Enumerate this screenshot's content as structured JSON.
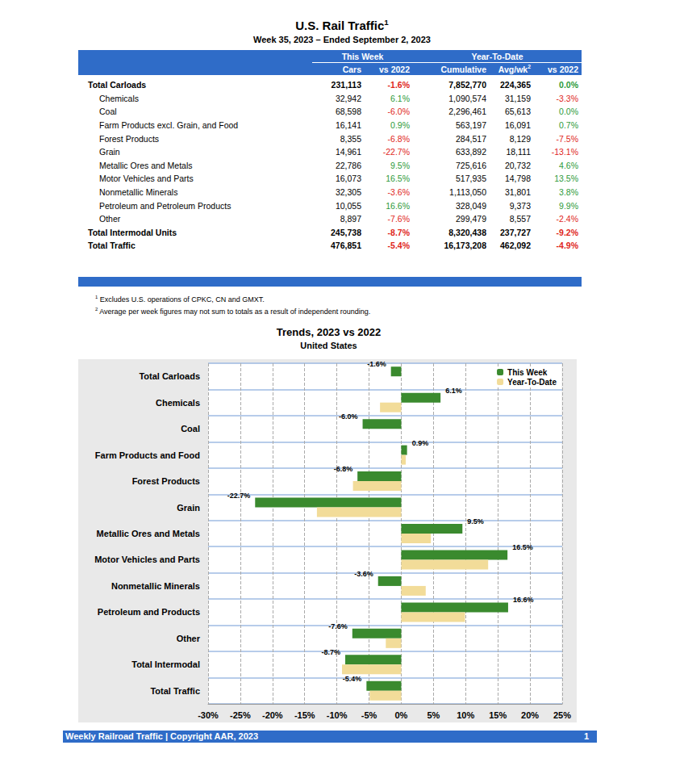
{
  "header": {
    "title": "U.S. Rail Traffic",
    "title_note": "1",
    "subtitle": "Week 35, 2023 – Ended September 2, 2023"
  },
  "table": {
    "header_groups": [
      {
        "label": "This Week",
        "columns": [
          {
            "text": "Cars"
          },
          {
            "text": "vs 2022"
          }
        ]
      },
      {
        "label": "Year-To-Date",
        "columns": [
          {
            "text": "Cumulative"
          },
          {
            "text": "Avg/wk",
            "note": "2"
          },
          {
            "text": "vs 2022"
          }
        ]
      }
    ],
    "rows": [
      {
        "label": "Total Carloads",
        "kind": "total",
        "cells": [
          "231,113",
          "-1.6%",
          "7,852,770",
          "224,365",
          "0.0%"
        ]
      },
      {
        "label": "Chemicals",
        "kind": "item",
        "cells": [
          "32,942",
          "6.1%",
          "1,090,574",
          "31,159",
          "-3.3%"
        ]
      },
      {
        "label": "Coal",
        "kind": "item",
        "cells": [
          "68,598",
          "-6.0%",
          "2,296,461",
          "65,613",
          "0.0%"
        ]
      },
      {
        "label": "Farm Products excl. Grain, and Food",
        "kind": "item",
        "cells": [
          "16,141",
          "0.9%",
          "563,197",
          "16,091",
          "0.7%"
        ]
      },
      {
        "label": "Forest Products",
        "kind": "item",
        "cells": [
          "8,355",
          "-6.8%",
          "284,517",
          "8,129",
          "-7.5%"
        ]
      },
      {
        "label": "Grain",
        "kind": "item",
        "cells": [
          "14,961",
          "-22.7%",
          "633,892",
          "18,111",
          "-13.1%"
        ]
      },
      {
        "label": "Metallic Ores and Metals",
        "kind": "item",
        "cells": [
          "22,786",
          "9.5%",
          "725,616",
          "20,732",
          "4.6%"
        ]
      },
      {
        "label": "Motor Vehicles and Parts",
        "kind": "item",
        "cells": [
          "16,073",
          "16.5%",
          "517,935",
          "14,798",
          "13.5%"
        ]
      },
      {
        "label": "Nonmetallic Minerals",
        "kind": "item",
        "cells": [
          "32,305",
          "-3.6%",
          "1,113,050",
          "31,801",
          "3.8%"
        ]
      },
      {
        "label": "Petroleum and Petroleum Products",
        "kind": "item",
        "cells": [
          "10,055",
          "16.6%",
          "328,049",
          "9,373",
          "9.9%"
        ]
      },
      {
        "label": "Other",
        "kind": "item",
        "cells": [
          "8,897",
          "-7.6%",
          "299,479",
          "8,557",
          "-2.4%"
        ]
      },
      {
        "label": "Total Intermodal Units",
        "kind": "total",
        "cells": [
          "245,738",
          "-8.7%",
          "8,320,438",
          "237,727",
          "-9.2%"
        ]
      },
      {
        "label": "Total Traffic",
        "kind": "total",
        "cells": [
          "476,851",
          "-5.4%",
          "16,173,208",
          "462,092",
          "-4.9%"
        ]
      }
    ]
  },
  "footnotes": [
    {
      "mark": "1",
      "text": "Excludes U.S. operations of CPKC, CN and GMXT."
    },
    {
      "mark": "2",
      "text": "Average per week figures may not sum to totals as a result of independent rounding."
    }
  ],
  "chart_data": {
    "type": "bar",
    "title": "Trends, 2023 vs 2022",
    "subtitle": "United States",
    "orientation": "horizontal",
    "categories": [
      "Total Carloads",
      "Chemicals",
      "Coal",
      "Farm Products and Food",
      "Forest Products",
      "Grain",
      "Metallic Ores and Metals",
      "Motor Vehicles and Parts",
      "Nonmetallic Minerals",
      "Petroleum and Products",
      "Other",
      "Total Intermodal",
      "Total Traffic"
    ],
    "series": [
      {
        "name": "This Week",
        "color": "#3a8a2e",
        "data_labels": true,
        "values": [
          -1.6,
          6.1,
          -6.0,
          0.9,
          -6.8,
          -22.7,
          9.5,
          16.5,
          -3.6,
          16.6,
          -7.6,
          -8.7,
          -5.4
        ],
        "value_labels": [
          "-1.6%",
          "6.1%",
          "-6.0%",
          "0.9%",
          "-6.8%",
          "-22.7%",
          "9.5%",
          "16.5%",
          "-3.6%",
          "16.6%",
          "-7.6%",
          "-8.7%",
          "-5.4%"
        ]
      },
      {
        "name": "Year-To-Date",
        "color": "#f2dc99",
        "data_labels": false,
        "values": [
          0.0,
          -3.3,
          0.0,
          0.7,
          -7.5,
          -13.1,
          4.6,
          13.5,
          3.8,
          9.9,
          -2.4,
          -9.2,
          -4.9
        ]
      }
    ],
    "xlim": [
      -30,
      25
    ],
    "xticks": [
      {
        "value": -30,
        "label": "-30%"
      },
      {
        "value": -25,
        "label": "-25%"
      },
      {
        "value": -20,
        "label": "-20%"
      },
      {
        "value": -15,
        "label": "-15%"
      },
      {
        "value": -10,
        "label": "-10%"
      },
      {
        "value": -5,
        "label": "-5%"
      },
      {
        "value": 0,
        "label": "0%"
      },
      {
        "value": 5,
        "label": "5%"
      },
      {
        "value": 10,
        "label": "10%"
      },
      {
        "value": 15,
        "label": "15%"
      },
      {
        "value": 20,
        "label": "20%"
      },
      {
        "value": 25,
        "label": "25%"
      }
    ],
    "grid": true,
    "legend": "upper right"
  },
  "footer": {
    "text": "Weekly Railroad Traffic | Copyright AAR, 2023",
    "page": "1"
  }
}
